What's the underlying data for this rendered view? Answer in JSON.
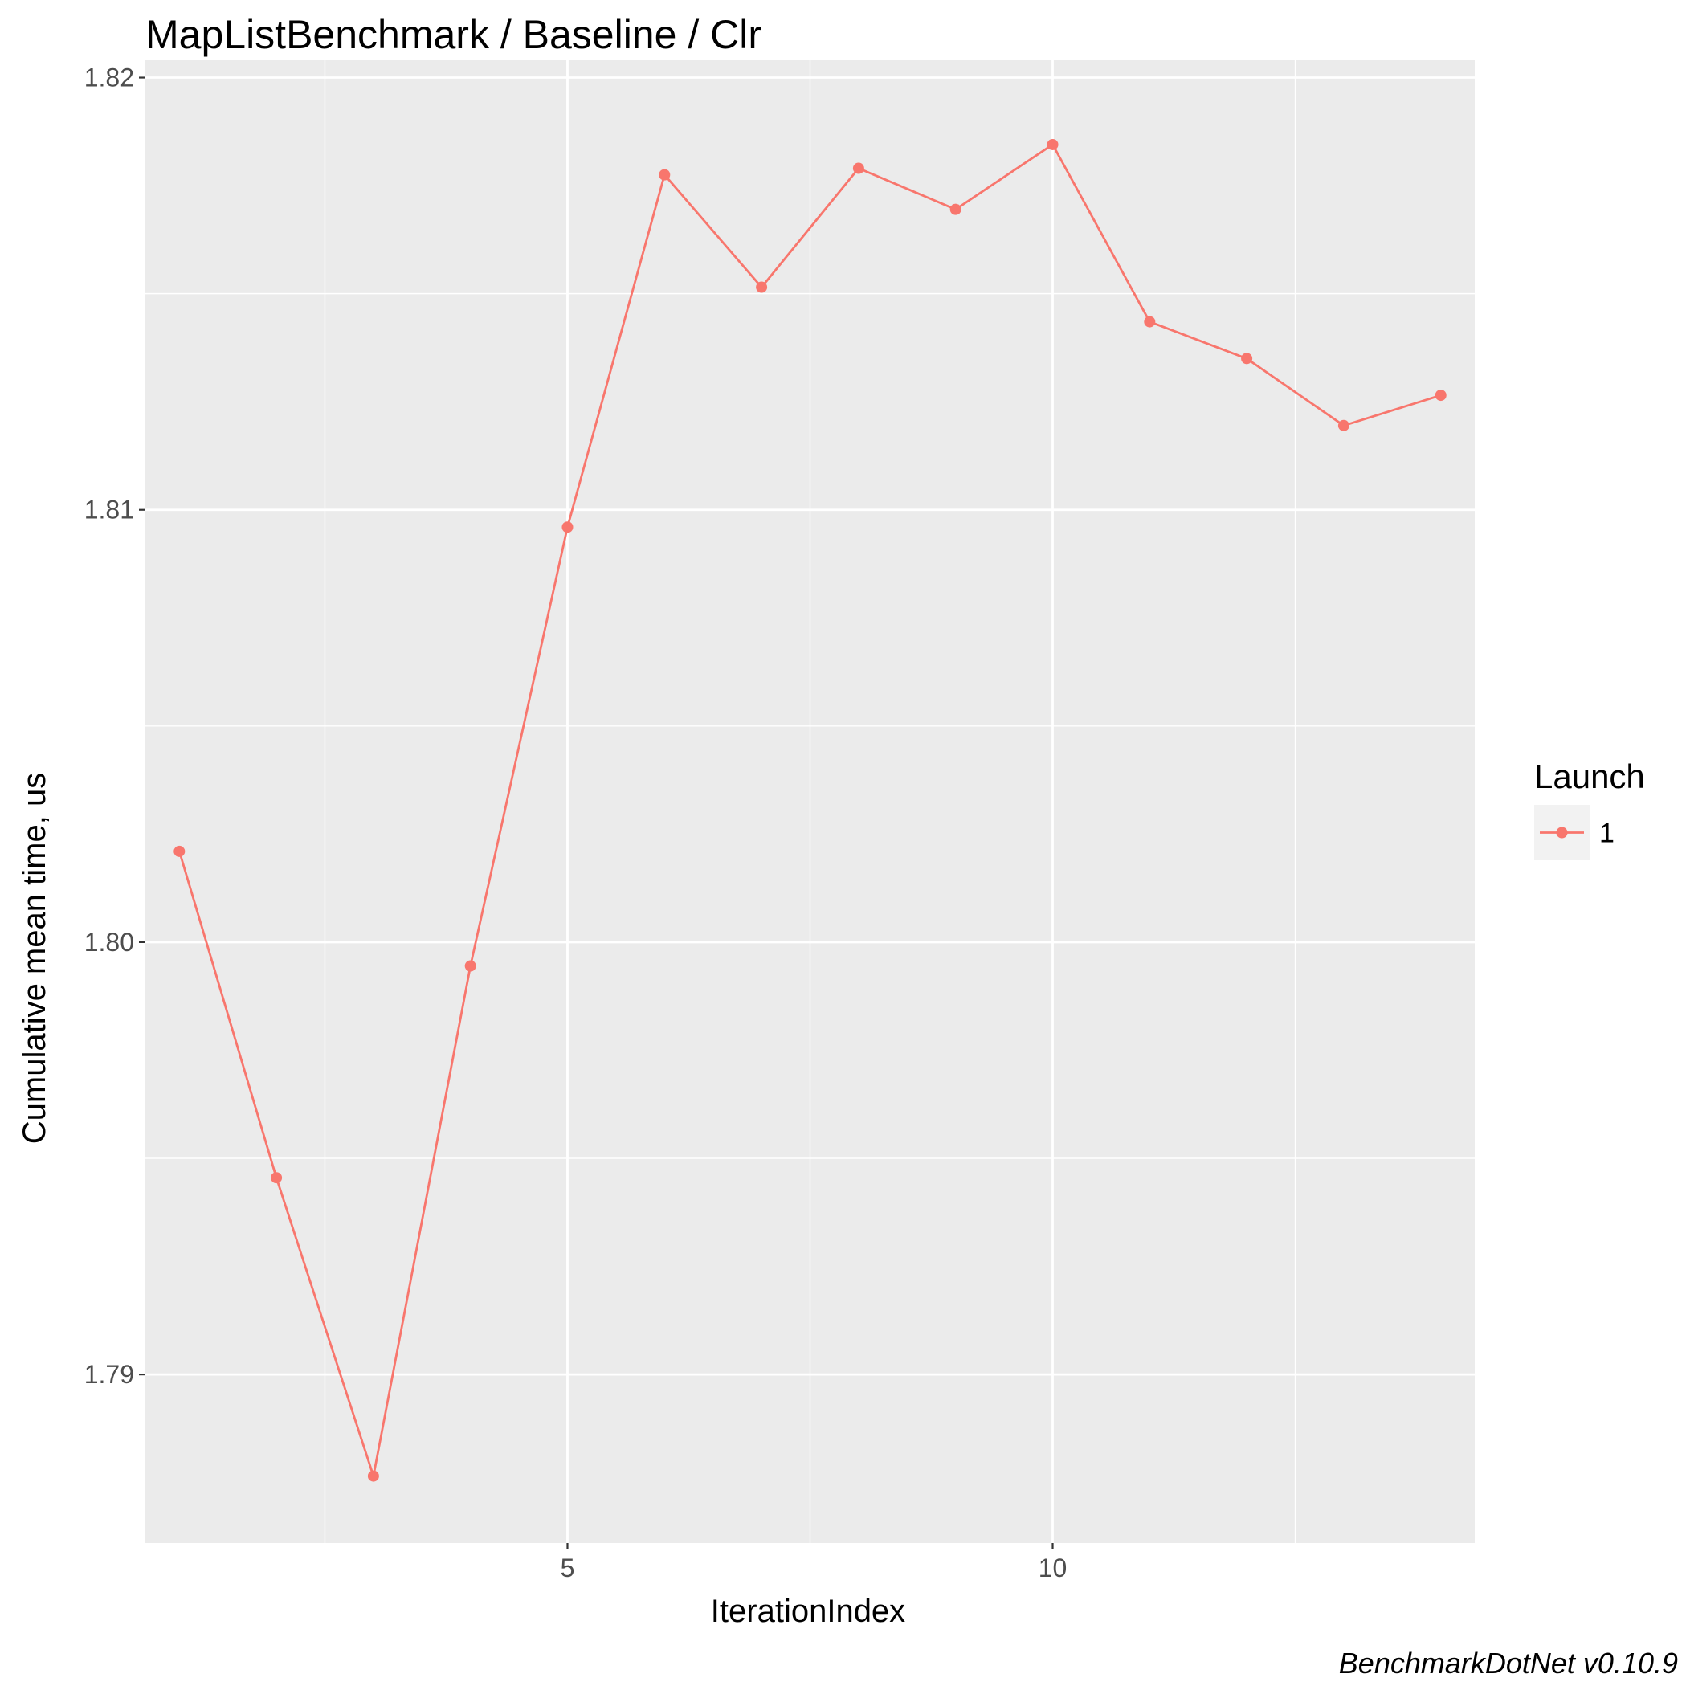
{
  "chart_data": {
    "type": "line",
    "title": "MapListBenchmark / Baseline / Clr",
    "xlabel": "IterationIndex",
    "ylabel": "Cumulative mean time, us",
    "caption": "BenchmarkDotNet v0.10.9",
    "xlim": [
      0.65,
      14.35
    ],
    "ylim": [
      1.7861,
      1.8204
    ],
    "x_ticks": [
      5,
      10
    ],
    "x_tick_labels": [
      "5",
      "10"
    ],
    "x_minor_ticks": [
      2.5,
      7.5,
      12.5
    ],
    "y_ticks": [
      1.79,
      1.8,
      1.81,
      1.82
    ],
    "y_tick_labels": [
      "1.79",
      "1.80",
      "1.81",
      "1.82"
    ],
    "y_minor_ticks": [
      1.795,
      1.805,
      1.815
    ],
    "grid": true,
    "legend": {
      "title": "Launch",
      "position": "right",
      "entries": [
        "1"
      ]
    },
    "colors": {
      "series": "#F8766D",
      "panel": "#EBEBEB",
      "grid": "#FFFFFF",
      "legend_key": "#F2F2F2"
    },
    "series": [
      {
        "name": "1",
        "x": [
          1,
          2,
          3,
          4,
          5,
          6,
          7,
          8,
          9,
          10,
          11,
          12,
          13,
          14
        ],
        "y": [
          1.8021,
          1.79455,
          1.78765,
          1.79945,
          1.8096,
          1.81775,
          1.81515,
          1.8179,
          1.81695,
          1.81845,
          1.81435,
          1.8135,
          1.81195,
          1.81265
        ]
      }
    ]
  }
}
